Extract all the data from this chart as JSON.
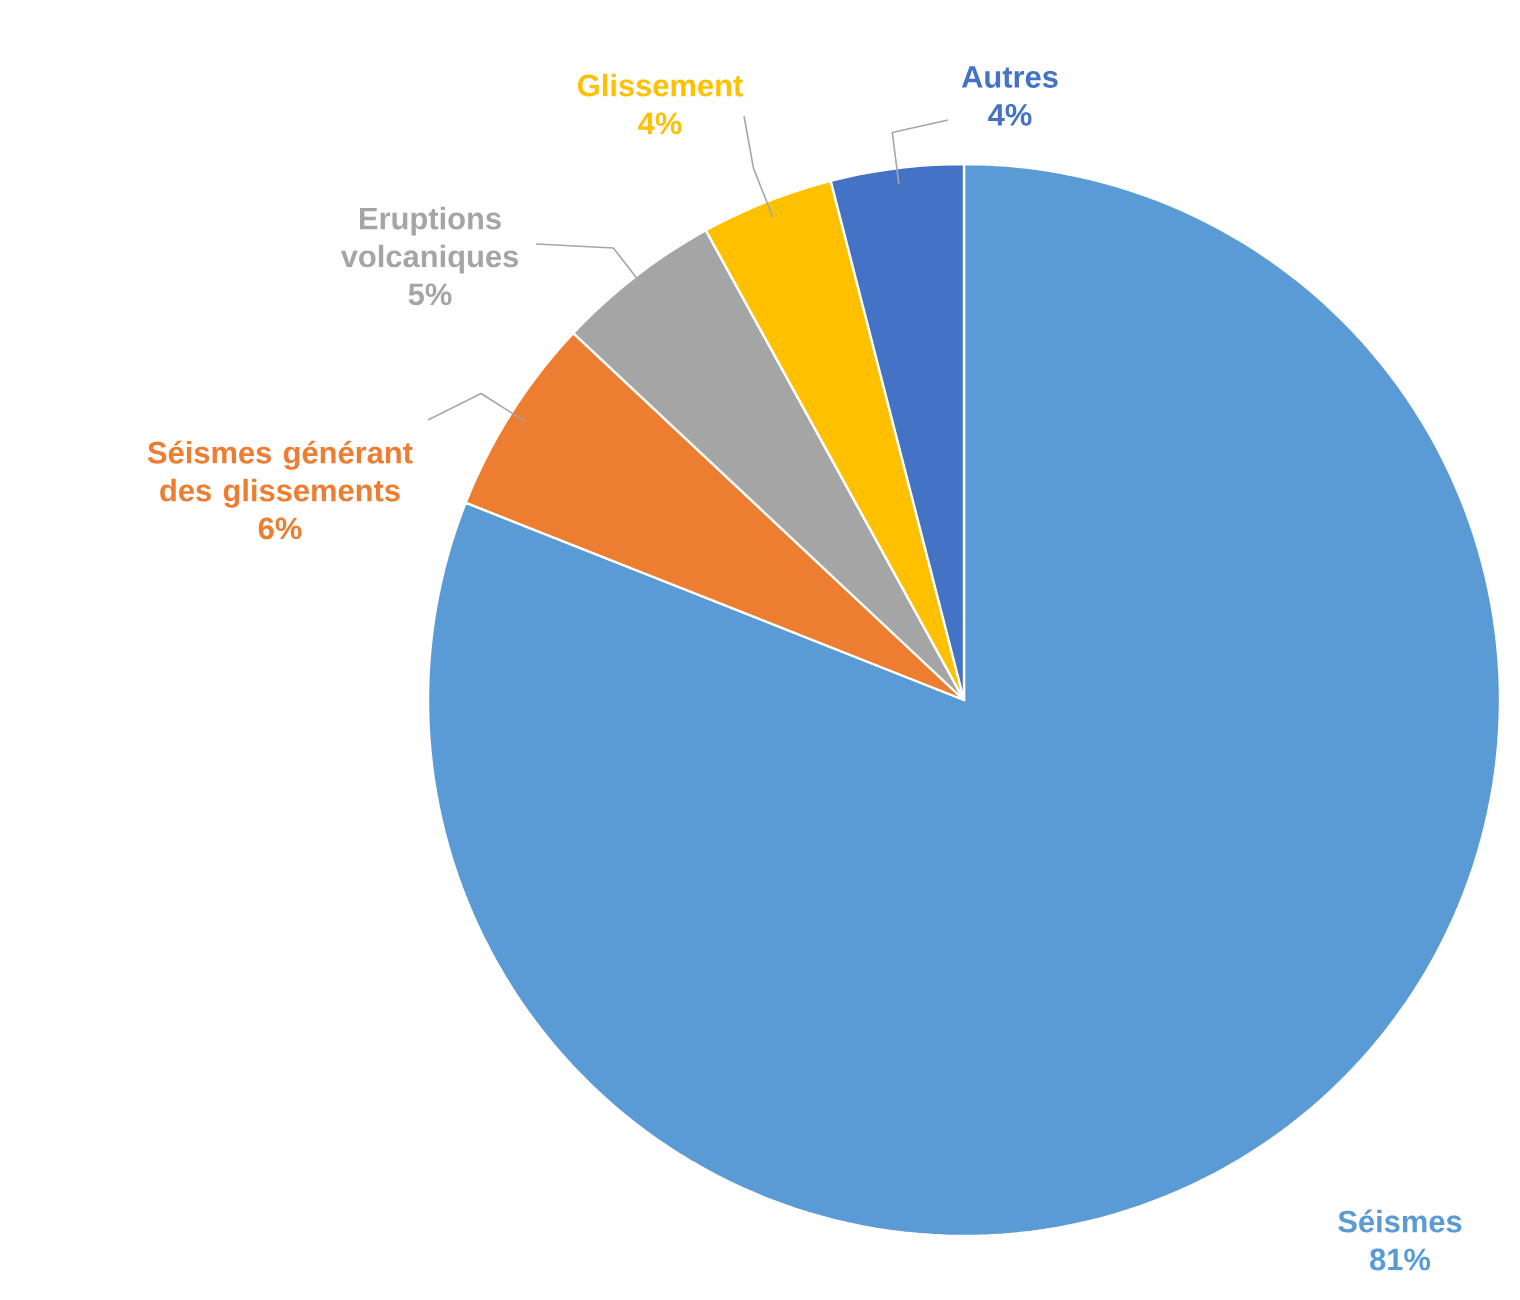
{
  "chart_data": {
    "type": "pie",
    "categories": [
      "Séismes",
      "Séismes générant des glissements",
      "Eruptions volcaniques",
      "Glissement",
      "Autres"
    ],
    "values": [
      81,
      6,
      5,
      4,
      4
    ],
    "value_labels": [
      "81%",
      "6%",
      "5%",
      "4%",
      "4%"
    ],
    "colors": [
      "#5b9bd5",
      "#ed7d31",
      "#a5a5a5",
      "#ffc000",
      "#4472c4"
    ]
  }
}
